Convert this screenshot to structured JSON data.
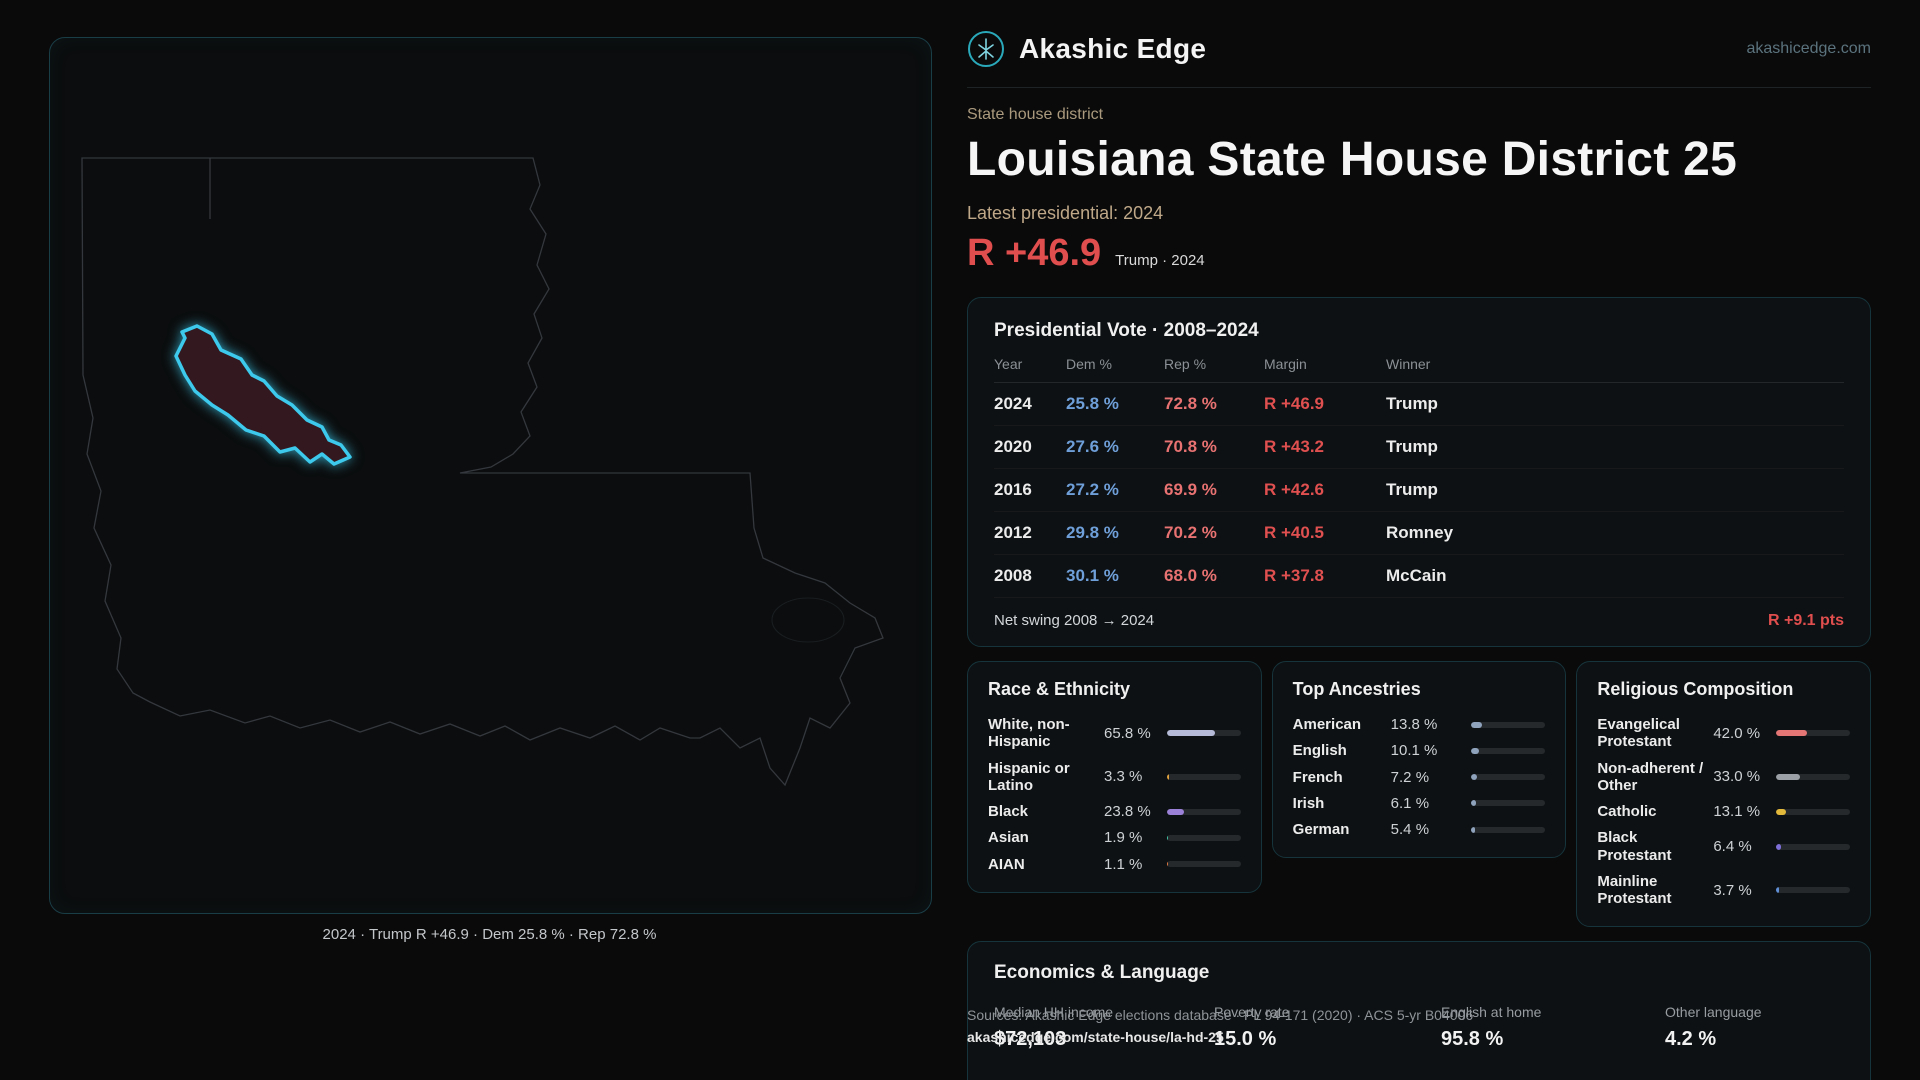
{
  "header": {
    "brand": "Akashic Edge",
    "site": "akashicedge.com"
  },
  "hero": {
    "kicker": "State house district",
    "title": "Louisiana State House District 25",
    "latest_label": "Latest presidential: 2024",
    "margin_value": "R +46.9",
    "margin_context": "Trump · 2024"
  },
  "map": {
    "caption": "2024 · Trump R +46.9 · Dem 25.8 % · Rep 72.8 %"
  },
  "presidential": {
    "title": "Presidential Vote · 2008–2024",
    "columns": [
      "Year",
      "Dem %",
      "Rep %",
      "Margin",
      "Winner"
    ],
    "rows": [
      {
        "year": "2024",
        "dem": "25.8 %",
        "rep": "72.8 %",
        "margin": "R +46.9",
        "winner": "Trump"
      },
      {
        "year": "2020",
        "dem": "27.6 %",
        "rep": "70.8 %",
        "margin": "R +43.2",
        "winner": "Trump"
      },
      {
        "year": "2016",
        "dem": "27.2 %",
        "rep": "69.9 %",
        "margin": "R +42.6",
        "winner": "Trump"
      },
      {
        "year": "2012",
        "dem": "29.8 %",
        "rep": "70.2 %",
        "margin": "R +40.5",
        "winner": "Romney"
      },
      {
        "year": "2008",
        "dem": "30.1 %",
        "rep": "68.0 %",
        "margin": "R +37.8",
        "winner": "McCain"
      }
    ],
    "net_swing_label": "Net swing 2008 → 2024",
    "net_swing_value": "R +9.1 pts"
  },
  "race": {
    "title": "Race & Ethnicity",
    "items": [
      {
        "label": "White, non-Hispanic",
        "value": "65.8 %",
        "pct": 65.8,
        "color": "#b6bcd8"
      },
      {
        "label": "Hispanic or Latino",
        "value": "3.3 %",
        "pct": 3.3,
        "color": "#e0a23e"
      },
      {
        "label": "Black",
        "value": "23.8 %",
        "pct": 23.8,
        "color": "#9b82d8"
      },
      {
        "label": "Asian",
        "value": "1.9 %",
        "pct": 1.9,
        "color": "#45c4a5"
      },
      {
        "label": "AIAN",
        "value": "1.1 %",
        "pct": 1.1,
        "color": "#e07a44"
      }
    ]
  },
  "ancestries": {
    "title": "Top Ancestries",
    "items": [
      {
        "label": "American",
        "value": "13.8 %",
        "pct": 13.8,
        "color": "#8fa3bd"
      },
      {
        "label": "English",
        "value": "10.1 %",
        "pct": 10.1,
        "color": "#8fa3bd"
      },
      {
        "label": "French",
        "value": "7.2 %",
        "pct": 7.2,
        "color": "#8fa3bd"
      },
      {
        "label": "Irish",
        "value": "6.1 %",
        "pct": 6.1,
        "color": "#8fa3bd"
      },
      {
        "label": "German",
        "value": "5.4 %",
        "pct": 5.4,
        "color": "#8fa3bd"
      }
    ]
  },
  "religion": {
    "title": "Religious Composition",
    "items": [
      {
        "label": "Evangelical Protestant",
        "value": "42.0 %",
        "pct": 42.0,
        "color": "#e57676"
      },
      {
        "label": "Non-adherent / Other",
        "value": "33.0 %",
        "pct": 33.0,
        "color": "#9aa0a6"
      },
      {
        "label": "Catholic",
        "value": "13.1 %",
        "pct": 13.1,
        "color": "#e2b93b"
      },
      {
        "label": "Black Protestant",
        "value": "6.4 %",
        "pct": 6.4,
        "color": "#7e6fd8"
      },
      {
        "label": "Mainline Protestant",
        "value": "3.7 %",
        "pct": 3.7,
        "color": "#5f8fd6"
      }
    ]
  },
  "economics": {
    "title": "Economics & Language",
    "stats": [
      {
        "label": "Median HH income",
        "value": "$72,103"
      },
      {
        "label": "Poverty rate",
        "value": "15.0 %"
      },
      {
        "label": "English at home",
        "value": "95.8 %"
      },
      {
        "label": "Other language",
        "value": "4.2 %"
      }
    ]
  },
  "footer": {
    "sources": "Sources: Akashic Edge elections database · PL 94-171 (2020) · ACS 5-yr B04006",
    "permalink": "akashicedge.com/state-house/la-hd-25"
  }
}
